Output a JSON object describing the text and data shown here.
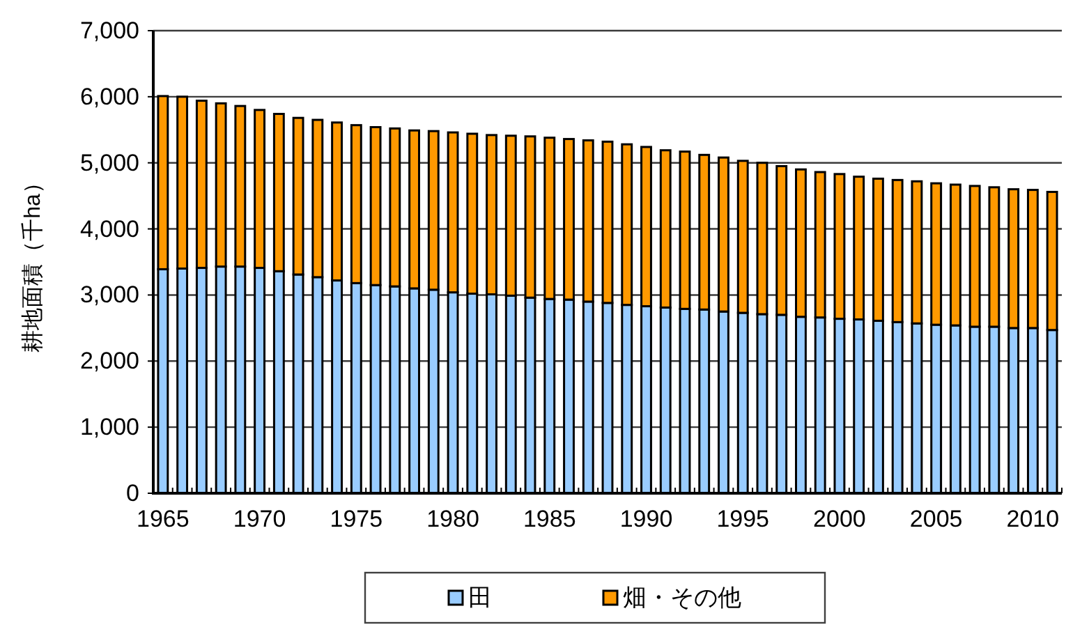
{
  "chart_data": {
    "type": "bar",
    "stacked": true,
    "ylabel": "耕地面積（千ha）",
    "categories": [
      "1965",
      null,
      null,
      null,
      null,
      "1970",
      null,
      null,
      null,
      null,
      "1975",
      null,
      null,
      null,
      null,
      "1980",
      null,
      null,
      null,
      null,
      "1985",
      null,
      null,
      null,
      null,
      "1990",
      null,
      null,
      null,
      null,
      "1995",
      null,
      null,
      null,
      null,
      "2000",
      null,
      null,
      null,
      null,
      "2005",
      null,
      null,
      null,
      null,
      "2010",
      null
    ],
    "series": [
      {
        "name": "田",
        "color": "#99ccff",
        "values": [
          3390,
          3400,
          3410,
          3430,
          3430,
          3410,
          3360,
          3310,
          3270,
          3220,
          3180,
          3150,
          3130,
          3100,
          3080,
          3040,
          3020,
          3010,
          2990,
          2960,
          2940,
          2930,
          2900,
          2880,
          2850,
          2830,
          2810,
          2790,
          2780,
          2750,
          2730,
          2710,
          2700,
          2670,
          2660,
          2640,
          2630,
          2610,
          2590,
          2570,
          2550,
          2540,
          2520,
          2520,
          2500,
          2500,
          2470
        ]
      },
      {
        "name": "畑・その他",
        "color": "#ff9900",
        "values": [
          2620,
          2600,
          2530,
          2470,
          2430,
          2390,
          2380,
          2370,
          2380,
          2390,
          2390,
          2390,
          2390,
          2390,
          2400,
          2420,
          2420,
          2410,
          2420,
          2440,
          2440,
          2430,
          2440,
          2440,
          2430,
          2410,
          2380,
          2380,
          2340,
          2330,
          2300,
          2290,
          2250,
          2230,
          2200,
          2190,
          2160,
          2150,
          2150,
          2150,
          2140,
          2130,
          2130,
          2110,
          2100,
          2090,
          2090
        ]
      }
    ],
    "ylim": [
      0,
      7000
    ],
    "yticks": [
      0,
      {
        "value": 1000,
        "label": "1,000"
      },
      {
        "value": 2000,
        "label": "2,000"
      },
      {
        "value": 3000,
        "label": "3,000"
      },
      {
        "value": 4000,
        "label": "4,000"
      },
      {
        "value": 5000,
        "label": "5,000"
      },
      {
        "value": 6000,
        "label": "6,000"
      },
      {
        "value": 7000,
        "label": "7,000"
      }
    ],
    "grid": "y",
    "legend": "bottom"
  }
}
